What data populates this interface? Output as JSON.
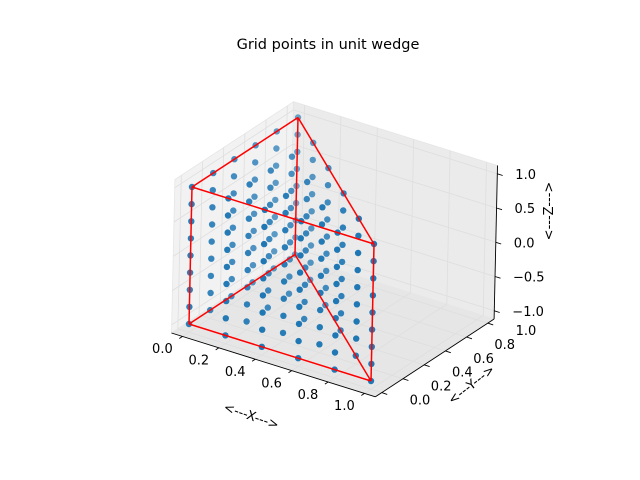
{
  "chart_data": {
    "type": "scatter",
    "projection": "3d",
    "title": "Grid points in unit wedge",
    "xlabel": "<---X--->",
    "ylabel": "<---Y--->",
    "zlabel": "<---Z--->",
    "xlim": [
      0,
      1
    ],
    "ylim": [
      0,
      1
    ],
    "zlim": [
      -1,
      1
    ],
    "x_ticks": [
      "0.0",
      "0.2",
      "0.4",
      "0.6",
      "0.8",
      "1.0"
    ],
    "y_ticks": [
      "0.0",
      "0.2",
      "0.4",
      "0.6",
      "0.8",
      "1.0"
    ],
    "z_ticks": [
      "−1.0",
      "−0.5",
      "0.0",
      "0.5",
      "1.0"
    ],
    "x_tick_values": [
      0,
      0.2,
      0.4,
      0.6,
      0.8,
      1.0
    ],
    "y_tick_values": [
      0,
      0.2,
      0.4,
      0.6,
      0.8,
      1.0
    ],
    "z_tick_values": [
      -1,
      -0.5,
      0,
      0.5,
      1
    ],
    "grid": true,
    "point_set": "all (x, y, z) on a 0.2 x 0.2 x 0.25 grid with x + y <= 1, x,y in [0,1], z in [-1,1]",
    "grid_step": {
      "x": 0.2,
      "y": 0.2,
      "z": 0.25
    },
    "series": [
      {
        "marker_color": "#1f77b4"
      }
    ],
    "outline": {
      "color": "#ff0000",
      "vertices": [
        [
          0,
          0,
          -1
        ],
        [
          1,
          0,
          -1
        ],
        [
          0,
          1,
          -1
        ],
        [
          0,
          0,
          1
        ],
        [
          1,
          0,
          1
        ],
        [
          0,
          1,
          1
        ]
      ],
      "edges": [
        [
          0,
          1
        ],
        [
          1,
          2
        ],
        [
          2,
          0
        ],
        [
          3,
          4
        ],
        [
          4,
          5
        ],
        [
          5,
          3
        ],
        [
          0,
          3
        ],
        [
          1,
          4
        ],
        [
          2,
          5
        ]
      ]
    },
    "colors": {
      "marker": "#1f77b4",
      "outline": "#ff0000",
      "pane": "#f2f2f2",
      "gridline": "#dedede"
    }
  }
}
